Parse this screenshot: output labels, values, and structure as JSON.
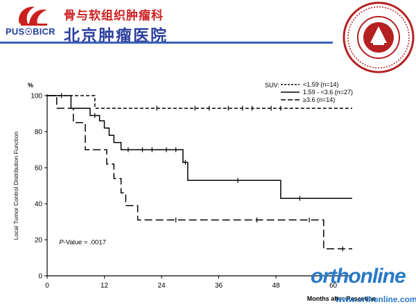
{
  "header": {
    "abbr": "PUS☉BICR",
    "org_line1": "骨与软组织肿瘤科",
    "org_line2": "北京肿瘤医院",
    "accent_blue": "#3a5fb8",
    "accent_red": "#cc2020"
  },
  "watermark": {
    "text": "orthonline",
    "url": "www.orthonline.com.cn"
  },
  "chart_data": {
    "type": "line",
    "step": true,
    "ylabel_unit": "%",
    "ylabel": "Local Tumor Control Distribution Function",
    "xlabel": "Months after Resection",
    "xlim": [
      0,
      64
    ],
    "ylim": [
      0,
      100
    ],
    "x_ticks": [
      0,
      12,
      24,
      36,
      48,
      60
    ],
    "y_ticks": [
      0,
      20,
      40,
      60,
      80,
      100
    ],
    "legend_title": "SUV:",
    "legend_position": "top-right",
    "annotation": {
      "italic": "P",
      "text": "-Value = .0017"
    },
    "series": [
      {
        "name": "<1.59 (n=14)",
        "dash": "short",
        "x": [
          0,
          10,
          10,
          64
        ],
        "y": [
          100,
          100,
          93,
          93
        ],
        "censored": [
          [
            23,
            93
          ],
          [
            31,
            93
          ],
          [
            34,
            93
          ],
          [
            38,
            93
          ],
          [
            41,
            93
          ],
          [
            43,
            93
          ],
          [
            47,
            93
          ],
          [
            49,
            93
          ]
        ]
      },
      {
        "name": "1.59 - <3.6 (n=27)",
        "dash": "solid",
        "x": [
          0,
          5,
          5,
          9,
          9,
          11,
          11,
          12,
          12,
          13,
          13,
          14,
          14,
          15.5,
          15.5,
          28.5,
          28.5,
          29.5,
          29.5,
          49,
          49,
          64
        ],
        "y": [
          100,
          100,
          93,
          93,
          89,
          89,
          86,
          86,
          82,
          82,
          78,
          78,
          74,
          74,
          70,
          70,
          63,
          63,
          53,
          53,
          43,
          43
        ],
        "censored": [
          [
            3,
            100
          ],
          [
            10,
            89
          ],
          [
            17,
            70
          ],
          [
            20,
            70
          ],
          [
            22,
            70
          ],
          [
            25,
            70
          ],
          [
            27,
            70
          ],
          [
            29,
            63
          ],
          [
            40,
            53
          ],
          [
            53,
            43
          ]
        ]
      },
      {
        "name": "≥3.6 (n=14)",
        "dash": "long",
        "x": [
          0,
          2,
          2,
          5.5,
          5.5,
          8,
          8,
          12.5,
          12.5,
          14,
          14,
          15.5,
          15.5,
          16.5,
          16.5,
          19,
          19,
          58,
          58,
          64
        ],
        "y": [
          100,
          100,
          93,
          93,
          85,
          85,
          70,
          70,
          62,
          62,
          54,
          54,
          46,
          46,
          39,
          39,
          31,
          31,
          15,
          15
        ],
        "censored": [
          [
            27,
            31
          ],
          [
            44,
            31
          ],
          [
            55,
            31
          ],
          [
            62,
            15
          ]
        ]
      }
    ]
  }
}
